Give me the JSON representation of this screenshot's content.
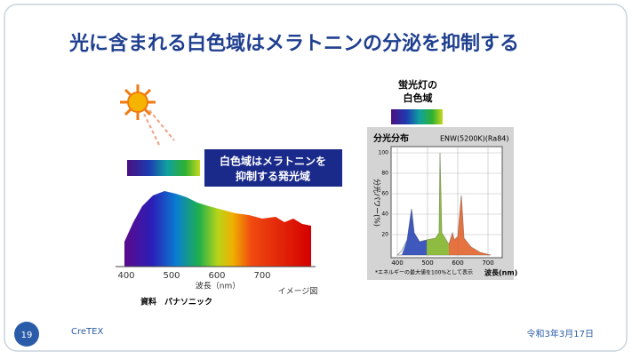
{
  "slide": {
    "title": "光に含まれる白色域はメラトニンの分泌を抑制する",
    "left_figure": {
      "callout": [
        "白色域はメラトニンを",
        "抑制する発光域"
      ],
      "x_ticks": [
        "400",
        "500",
        "600",
        "700"
      ],
      "x_label": "波長（nm）",
      "note": "イメージ図",
      "source": "資料　パナソニック"
    },
    "right_figure": {
      "label": [
        "蛍光灯の",
        "白色域"
      ],
      "panel_title": "分光分布",
      "model": "ENW(5200K)(Ra84)",
      "y_label": "分光パワー(%)",
      "y_ticks": [
        "100",
        "80",
        "60",
        "40",
        "20"
      ],
      "x_ticks": [
        "400",
        "500",
        "600",
        "700"
      ],
      "x_label": "波長(nm)",
      "footnote": "*エネルギーの最大値を100%として表示"
    },
    "footer": {
      "page": "19",
      "org": "CreTEX",
      "date": "令和3年3月17日"
    }
  }
}
